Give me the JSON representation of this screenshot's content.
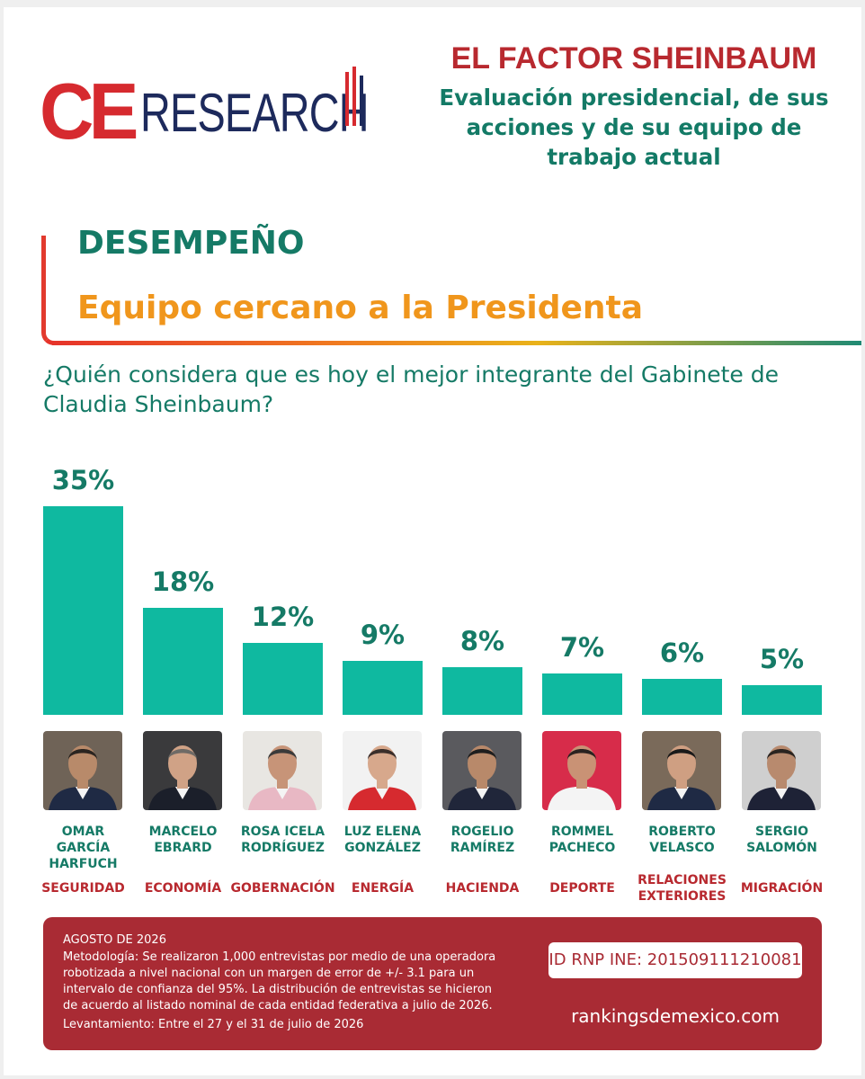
{
  "header": {
    "logo_ce": "CE",
    "logo_research": "RESEARCH",
    "title": "EL FACTOR SHEINBAUM",
    "subtitle": "Evaluación presidencial, de sus acciones y de su equipo de trabajo actual"
  },
  "section": {
    "label": "DESEMPEÑO",
    "heading": "Equipo cercano a la Presidenta"
  },
  "question": "¿Quién considera que es hoy el mejor integrante del Gabinete de Claudia Sheinbaum?",
  "chart_data": {
    "type": "bar",
    "title": "¿Quién considera que es hoy el mejor integrante del Gabinete de Claudia Sheinbaum?",
    "categories": [
      "OMAR GARCÍA HARFUCH",
      "MARCELO EBRARD",
      "ROSA ICELA RODRÍGUEZ",
      "LUZ ELENA GONZÁLEZ",
      "ROGELIO RAMÍREZ",
      "ROMMEL PACHECO",
      "ROBERTO VELASCO",
      "SERGIO SALOMÓN"
    ],
    "values": [
      35,
      18,
      12,
      9,
      8,
      7,
      6,
      5
    ],
    "value_labels": [
      "35%",
      "18%",
      "12%",
      "9%",
      "8%",
      "7%",
      "6%",
      "5%"
    ],
    "roles": [
      "SEGURIDAD",
      "ECONOMÍA",
      "GOBERNACIÓN",
      "ENERGÍA",
      "HACIENDA",
      "DEPORTE",
      "RELACIONES EXTERIORES",
      "MIGRACIÓN"
    ],
    "ylim": [
      0,
      35
    ],
    "bar_color": "#0fb9a0",
    "grid": false,
    "xlabel": "",
    "ylabel": ""
  },
  "photo_colors": [
    {
      "bg": "#6f6357",
      "suit": "#1f2a44",
      "skin": "#b88a6a",
      "hair": "#2a2420"
    },
    {
      "bg": "#3a3a3c",
      "suit": "#1b1f2a",
      "skin": "#d0a286",
      "hair": "#6e6a66"
    },
    {
      "bg": "#e8e6e2",
      "suit": "#e8b8c4",
      "skin": "#c79478",
      "hair": "#3a3a3a"
    },
    {
      "bg": "#f2f2f2",
      "suit": "#d62a2f",
      "skin": "#d7a88c",
      "hair": "#3a2e2a"
    },
    {
      "bg": "#5a5a5e",
      "suit": "#20263a",
      "skin": "#b8896a",
      "hair": "#1e1e1e"
    },
    {
      "bg": "#d72c4a",
      "suit": "#f4f4f4",
      "skin": "#c99275",
      "hair": "#2a2220"
    },
    {
      "bg": "#7a6a5a",
      "suit": "#1f2a44",
      "skin": "#cf9f82",
      "hair": "#1a1a1a"
    },
    {
      "bg": "#cfcfcf",
      "suit": "#1e2236",
      "skin": "#b88a6e",
      "hair": "#2a2420"
    }
  ],
  "footer": {
    "date": "AGOSTO DE 2026",
    "methodology": "Metodología: Se realizaron 1,000 entrevistas por medio de una operadora robotizada a nivel nacional con un margen de error de +/- 3.1 para un intervalo de confianza del 95%. La distribución de entrevistas se hicieron de acuerdo al listado nominal de cada entidad federativa a julio de 2026.",
    "period": "Levantamiento: Entre el 27 y el 31 de julio de 2026",
    "rnp": "ID RNP INE: 201509111210081",
    "website": "rankingsdemexico.com"
  }
}
